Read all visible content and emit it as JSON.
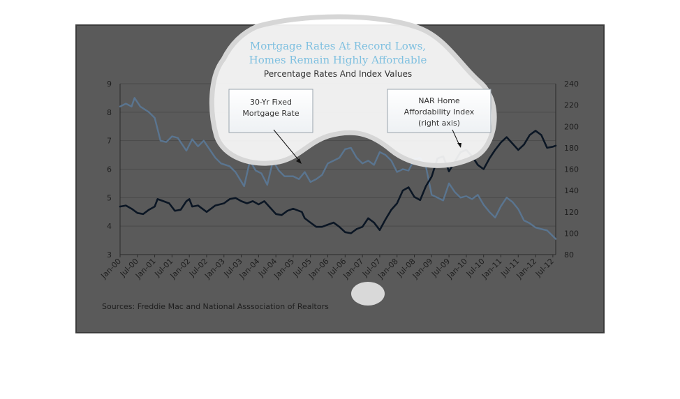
{
  "chart_data": {
    "type": "line",
    "title_line1": "Mortgage Rates At Record Lows,",
    "title_line2": "Homes Remain Highly Affordable",
    "subtitle": "Percentage Rates And Index Values",
    "source": "Sources:  Freddie Mac and National Asssociation of Realtors",
    "left_axis": {
      "min": 3,
      "max": 9,
      "ticks": [
        "3",
        "4",
        "5",
        "6",
        "7",
        "8",
        "9"
      ]
    },
    "right_axis": {
      "min": 80,
      "max": 240,
      "ticks": [
        "80",
        "100",
        "120",
        "140",
        "160",
        "180",
        "200",
        "220",
        "240"
      ]
    },
    "x_ticks": [
      "Jan-00",
      "Jul-00",
      "Jan-01",
      "Jul-01",
      "Jan-02",
      "Jul-02",
      "Jan-03",
      "Jul-03",
      "Jan-04",
      "Jul-04",
      "Jan-05",
      "Jul-05",
      "Jan-06",
      "Jul-06",
      "Jan-07",
      "Jul-07",
      "Jan-08",
      "Jul-08",
      "Jan-09",
      "Jul-09",
      "Jan-10",
      "Jul-10",
      "Jan-11",
      "Jul-11",
      "Jan-12",
      "Jul-12"
    ],
    "x_tick_months": [
      0,
      6,
      12,
      18,
      24,
      30,
      36,
      42,
      48,
      54,
      60,
      66,
      72,
      78,
      84,
      90,
      96,
      102,
      108,
      114,
      120,
      126,
      132,
      138,
      144,
      150
    ],
    "grid": true,
    "series": [
      {
        "name": "30-Yr Fixed Mortgage Rate",
        "axis": "left",
        "color": "#5a7590",
        "points": [
          [
            0,
            8.2
          ],
          [
            2,
            8.3
          ],
          [
            4,
            8.2
          ],
          [
            5,
            8.5
          ],
          [
            7,
            8.2
          ],
          [
            10,
            8.0
          ],
          [
            12,
            7.8
          ],
          [
            14,
            7.0
          ],
          [
            16,
            6.95
          ],
          [
            18,
            7.15
          ],
          [
            20,
            7.1
          ],
          [
            23,
            6.65
          ],
          [
            25,
            7.05
          ],
          [
            27,
            6.8
          ],
          [
            29,
            7.0
          ],
          [
            33,
            6.4
          ],
          [
            35,
            6.2
          ],
          [
            38,
            6.1
          ],
          [
            40,
            5.9
          ],
          [
            43,
            5.4
          ],
          [
            45,
            6.3
          ],
          [
            47,
            5.95
          ],
          [
            49,
            5.85
          ],
          [
            51,
            5.45
          ],
          [
            53,
            6.3
          ],
          [
            55,
            5.95
          ],
          [
            57,
            5.75
          ],
          [
            60,
            5.75
          ],
          [
            62,
            5.65
          ],
          [
            64,
            5.9
          ],
          [
            66,
            5.55
          ],
          [
            68,
            5.65
          ],
          [
            70,
            5.8
          ],
          [
            72,
            6.2
          ],
          [
            74,
            6.3
          ],
          [
            76,
            6.4
          ],
          [
            78,
            6.7
          ],
          [
            80,
            6.75
          ],
          [
            82,
            6.4
          ],
          [
            84,
            6.2
          ],
          [
            86,
            6.3
          ],
          [
            88,
            6.15
          ],
          [
            90,
            6.6
          ],
          [
            92,
            6.5
          ],
          [
            94,
            6.3
          ],
          [
            96,
            5.9
          ],
          [
            98,
            6.0
          ],
          [
            100,
            5.95
          ],
          [
            102,
            6.35
          ],
          [
            104,
            6.4
          ],
          [
            106,
            6.1
          ],
          [
            108,
            5.1
          ],
          [
            110,
            5.0
          ],
          [
            112,
            4.9
          ],
          [
            114,
            5.5
          ],
          [
            116,
            5.2
          ],
          [
            118,
            5.0
          ],
          [
            120,
            5.05
          ],
          [
            122,
            4.95
          ],
          [
            124,
            5.1
          ],
          [
            126,
            4.75
          ],
          [
            128,
            4.5
          ],
          [
            130,
            4.3
          ],
          [
            132,
            4.7
          ],
          [
            134,
            5.0
          ],
          [
            136,
            4.85
          ],
          [
            138,
            4.6
          ],
          [
            140,
            4.2
          ],
          [
            142,
            4.1
          ],
          [
            144,
            3.95
          ],
          [
            146,
            3.9
          ],
          [
            148,
            3.85
          ],
          [
            150,
            3.65
          ],
          [
            151,
            3.55
          ]
        ]
      },
      {
        "name": "NAR Home Affordability Index (right axis)",
        "axis": "right",
        "color": "#0b1624",
        "points": [
          [
            0,
            125
          ],
          [
            2,
            126
          ],
          [
            4,
            123
          ],
          [
            6,
            119
          ],
          [
            8,
            118
          ],
          [
            10,
            122
          ],
          [
            12,
            125
          ],
          [
            13,
            132
          ],
          [
            15,
            130
          ],
          [
            17,
            128
          ],
          [
            19,
            121
          ],
          [
            21,
            122
          ],
          [
            23,
            130
          ],
          [
            24,
            132
          ],
          [
            25,
            125
          ],
          [
            27,
            126
          ],
          [
            29,
            122
          ],
          [
            30,
            120
          ],
          [
            33,
            126
          ],
          [
            36,
            128
          ],
          [
            38,
            132
          ],
          [
            40,
            133
          ],
          [
            42,
            130
          ],
          [
            44,
            128
          ],
          [
            46,
            130
          ],
          [
            48,
            127
          ],
          [
            50,
            130
          ],
          [
            52,
            124
          ],
          [
            54,
            118
          ],
          [
            56,
            117
          ],
          [
            58,
            121
          ],
          [
            60,
            123
          ],
          [
            63,
            120
          ],
          [
            64,
            114
          ],
          [
            66,
            110
          ],
          [
            68,
            106
          ],
          [
            70,
            106
          ],
          [
            72,
            108
          ],
          [
            74,
            110
          ],
          [
            76,
            106
          ],
          [
            78,
            101
          ],
          [
            80,
            100
          ],
          [
            82,
            104
          ],
          [
            84,
            106
          ],
          [
            86,
            114
          ],
          [
            88,
            110
          ],
          [
            90,
            103
          ],
          [
            92,
            113
          ],
          [
            94,
            122
          ],
          [
            96,
            128
          ],
          [
            98,
            140
          ],
          [
            100,
            143
          ],
          [
            102,
            134
          ],
          [
            104,
            131
          ],
          [
            106,
            144
          ],
          [
            108,
            153
          ],
          [
            110,
            170
          ],
          [
            112,
            172
          ],
          [
            114,
            158
          ],
          [
            116,
            167
          ],
          [
            118,
            176
          ],
          [
            120,
            178
          ],
          [
            122,
            172
          ],
          [
            124,
            164
          ],
          [
            126,
            160
          ],
          [
            128,
            170
          ],
          [
            130,
            178
          ],
          [
            132,
            185
          ],
          [
            134,
            190
          ],
          [
            136,
            184
          ],
          [
            138,
            178
          ],
          [
            140,
            183
          ],
          [
            142,
            192
          ],
          [
            144,
            196
          ],
          [
            146,
            192
          ],
          [
            148,
            180
          ],
          [
            150,
            181
          ],
          [
            151,
            182
          ]
        ]
      }
    ],
    "annotations": [
      {
        "line1": "30-Yr Fixed",
        "line2": "Mortgage Rate"
      },
      {
        "line1": "NAR Home",
        "line2": "Affordability Index",
        "line3": "(right axis)"
      }
    ]
  }
}
